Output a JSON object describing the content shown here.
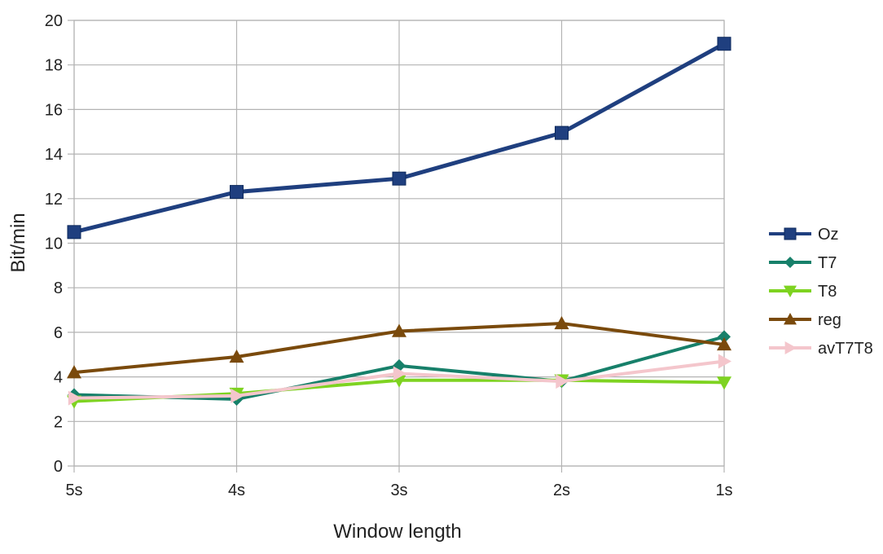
{
  "chart_data": {
    "type": "line",
    "title": "",
    "xlabel": "Window length",
    "ylabel": "Bit/min",
    "categories": [
      "5s",
      "4s",
      "3s",
      "2s",
      "1s"
    ],
    "ylim": [
      0,
      20
    ],
    "yticks": [
      0,
      2,
      4,
      6,
      8,
      10,
      12,
      14,
      16,
      18,
      20
    ],
    "grid": true,
    "legend_position": "right",
    "series": [
      {
        "name": "Oz",
        "values": [
          10.5,
          12.3,
          12.9,
          14.95,
          18.95
        ],
        "color": "#1f3f7f",
        "marker": "square"
      },
      {
        "name": "T7",
        "values": [
          3.2,
          3.0,
          4.5,
          3.8,
          5.8
        ],
        "color": "#17806a",
        "marker": "diamond"
      },
      {
        "name": "T8",
        "values": [
          2.9,
          3.25,
          3.85,
          3.85,
          3.75
        ],
        "color": "#7ed321",
        "marker": "triangle-down"
      },
      {
        "name": "reg",
        "values": [
          4.2,
          4.9,
          6.05,
          6.4,
          5.45
        ],
        "color": "#7a4a0c",
        "marker": "triangle-up"
      },
      {
        "name": "avT7T8",
        "values": [
          3.05,
          3.15,
          4.15,
          3.8,
          4.7
        ],
        "color": "#f4c6cc",
        "marker": "triangle-right"
      }
    ]
  }
}
